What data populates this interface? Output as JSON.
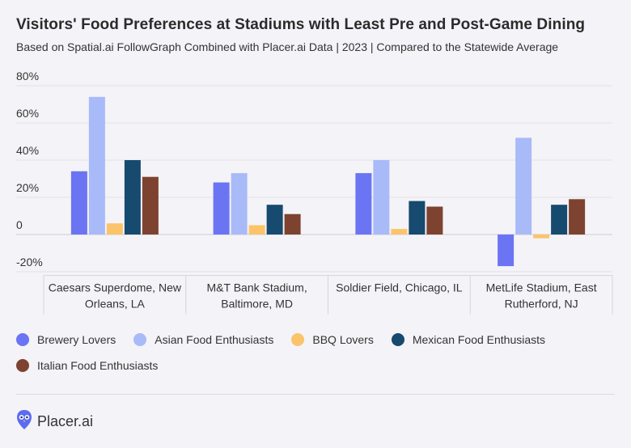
{
  "header": {
    "title": "Visitors' Food Preferences at Stadiums with Least Pre and Post-Game Dining",
    "subtitle": "Based on Spatial.ai FollowGraph Combined with Placer.ai Data | 2023 | Compared to the Statewide Average"
  },
  "chart_data": {
    "type": "bar",
    "categories": [
      [
        "Caesars Superdome, New",
        "Orleans, LA"
      ],
      [
        "M&T Bank Stadium,",
        "Baltimore, MD"
      ],
      [
        "Soldier Field, Chicago, IL"
      ],
      [
        "MetLife Stadium, East",
        "Rutherford, NJ"
      ]
    ],
    "series": [
      {
        "name": "Brewery Lovers",
        "color": "#6b74f2",
        "values": [
          34,
          28,
          33,
          -17
        ]
      },
      {
        "name": "Asian Food Enthusiasts",
        "color": "#a8baf8",
        "values": [
          74,
          33,
          40,
          52
        ]
      },
      {
        "name": "BBQ Lovers",
        "color": "#fbc46a",
        "values": [
          6,
          5,
          3,
          -2
        ]
      },
      {
        "name": "Mexican Food Enthusiasts",
        "color": "#164a6e",
        "values": [
          40,
          16,
          18,
          16
        ]
      },
      {
        "name": "Italian Food Enthusiasts",
        "color": "#7d4330",
        "values": [
          31,
          11,
          15,
          19
        ]
      }
    ],
    "y_ticks": [
      80,
      60,
      40,
      20,
      0,
      -20
    ],
    "y_tick_labels": [
      "80%",
      "60%",
      "40%",
      "20%",
      "0",
      "-20%"
    ],
    "ylim": [
      -22,
      84
    ],
    "xlabel": "",
    "ylabel": "",
    "grid": true,
    "legend_position": "bottom"
  },
  "legend": {
    "items": [
      {
        "label": "Brewery Lovers",
        "color": "#6b74f2"
      },
      {
        "label": "Asian Food Enthusiasts",
        "color": "#a8baf8"
      },
      {
        "label": "BBQ Lovers",
        "color": "#fbc46a"
      },
      {
        "label": "Mexican Food Enthusiasts",
        "color": "#164a6e"
      },
      {
        "label": "Italian Food Enthusiasts",
        "color": "#7d4330"
      }
    ]
  },
  "footer": {
    "brand": "Placer.ai",
    "logo_icon": "placer-owl-icon",
    "logo_color": "#5b6cf0"
  }
}
